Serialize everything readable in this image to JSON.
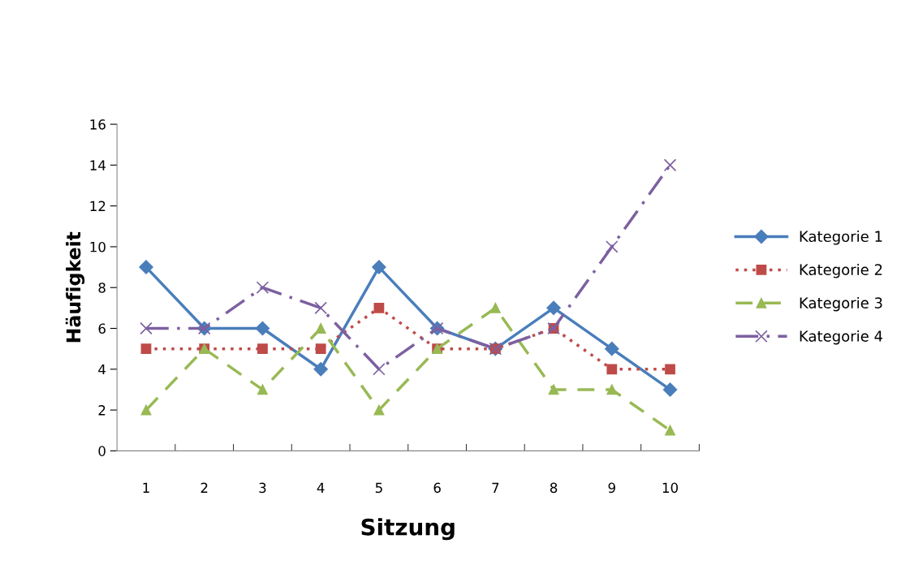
{
  "chart_data": {
    "type": "line",
    "xlabel": "Sitzung",
    "ylabel": "Häufigkeit",
    "categories": [
      "1",
      "2",
      "3",
      "4",
      "5",
      "6",
      "7",
      "8",
      "9",
      "10"
    ],
    "series": [
      {
        "name": "Kategorie 1",
        "color": "#4a7ebb",
        "marker": "diamond",
        "line_style": "solid",
        "values": [
          9,
          6,
          6,
          4,
          9,
          6,
          5,
          7,
          5,
          3
        ]
      },
      {
        "name": "Kategorie 2",
        "color": "#be4b48",
        "marker": "square",
        "line_style": "dotted",
        "values": [
          5,
          5,
          5,
          5,
          7,
          5,
          5,
          6,
          4,
          4
        ]
      },
      {
        "name": "Kategorie 3",
        "color": "#98b954",
        "marker": "triangle",
        "line_style": "dashed",
        "values": [
          2,
          5,
          3,
          6,
          2,
          5,
          7,
          3,
          3,
          1
        ]
      },
      {
        "name": "Kategorie 4",
        "color": "#7d60a0",
        "marker": "cross",
        "line_style": "dashdot",
        "values": [
          6,
          6,
          8,
          7,
          4,
          6,
          5,
          6,
          10,
          14
        ]
      }
    ],
    "ylim": [
      0,
      16
    ],
    "yticks": [
      0,
      2,
      4,
      6,
      8,
      10,
      12,
      14,
      16
    ],
    "grid": false,
    "legend": "right"
  }
}
